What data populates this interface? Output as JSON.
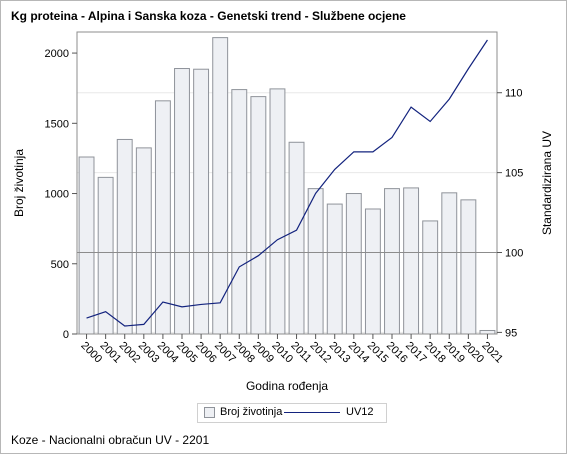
{
  "title": "Kg proteina - Alpina i Sanska koza - Genetski trend - Službene ocjene",
  "footnote": "Koze - Nacionalni obračun UV - 2201",
  "legend": {
    "bar_label": "Broj životinja",
    "line_label": "UV12"
  },
  "colors": {
    "bar_fill": "#eef0f4",
    "bar_stroke": "#8f939a",
    "line": "#13237e",
    "reference_line": "#8c8c8c",
    "grid": "#e8e8e8",
    "frame": "#8c8c8c"
  },
  "chart_data": {
    "type": "bar",
    "title": "Kg proteina - Alpina i Sanska koza - Genetski trend - Službene ocjene",
    "xlabel": "Godina rođenja",
    "ylabel": "Broj životinja",
    "y2label": "Standardizirana UV",
    "categories": [
      "2000",
      "2001",
      "2002",
      "2003",
      "2004",
      "2005",
      "2006",
      "2007",
      "2008",
      "2009",
      "2010",
      "2011",
      "2012",
      "2013",
      "2014",
      "2015",
      "2016",
      "2017",
      "2018",
      "2019",
      "2020",
      "2021"
    ],
    "series": [
      {
        "name": "Broj životinja",
        "type": "bar",
        "axis": "left",
        "values": [
          1260,
          1115,
          1385,
          1325,
          1660,
          1890,
          1885,
          2110,
          1740,
          1690,
          1745,
          1365,
          1035,
          925,
          1000,
          890,
          1035,
          1040,
          805,
          1005,
          955,
          25
        ]
      },
      {
        "name": "UV12",
        "type": "line",
        "axis": "right",
        "values": [
          95.9,
          96.3,
          95.4,
          95.5,
          96.9,
          96.6,
          96.75,
          96.85,
          99.1,
          99.8,
          100.8,
          101.4,
          103.7,
          105.2,
          106.3,
          106.3,
          107.2,
          109.1,
          108.2,
          109.6,
          111.5,
          113.3
        ]
      }
    ],
    "ylim": [
      0,
      2150
    ],
    "yticks": [
      0,
      500,
      1000,
      1500,
      2000
    ],
    "y2lim": [
      94.9,
      113.8
    ],
    "y2ticks": [
      95,
      100,
      105,
      110
    ],
    "reference_y2": 100,
    "grid": "horizontal at right-axis ticks",
    "legend_position": "bottom-center"
  }
}
